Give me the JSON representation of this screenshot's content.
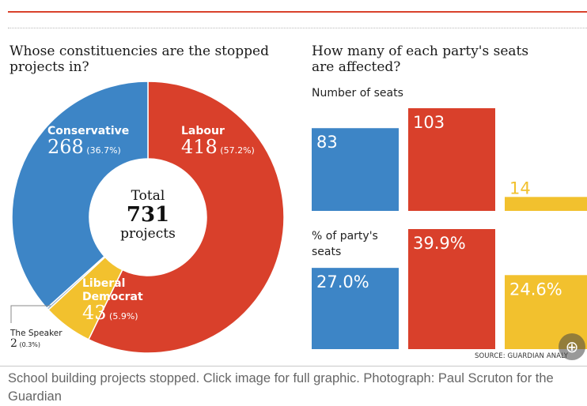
{
  "left_title": "Whose constituencies are the stopped projects in?",
  "right_title": "How many of each party's seats are affected?",
  "seats_label": "Number of seats",
  "pct_label": "% of party's seats",
  "source": "SOURCE: GUARDIAN ANALY",
  "caption": "School building projects stopped. Click image for full graphic. Photograph: Paul Scruton for the Guardian",
  "zoom_symbol": "⊕",
  "colors": {
    "labour": "#d9402b",
    "conservative": "#3d85c6",
    "libdem": "#f2c12e",
    "speaker": "#9ab3cc"
  },
  "chart_data": [
    {
      "type": "pie",
      "title": "Whose constituencies are the stopped projects in?",
      "center_label": [
        "Total",
        "731",
        "projects"
      ],
      "slices": [
        {
          "name": "Labour",
          "value": 418,
          "pct_label": "(57.2%)",
          "color": "#d9402b"
        },
        {
          "name": "Liberal Democrat",
          "value": 43,
          "pct_label": "(5.9%)",
          "color": "#f2c12e"
        },
        {
          "name": "The Speaker",
          "value": 2,
          "pct_label": "(0.3%)",
          "color": "#9ab3cc"
        },
        {
          "name": "Conservative",
          "value": 268,
          "pct_label": "(36.7%)",
          "color": "#3d85c6"
        }
      ]
    },
    {
      "type": "bar",
      "title": "Number of seats",
      "categories": [
        "Conservative",
        "Labour",
        "Liberal Democrat"
      ],
      "values": [
        83,
        103,
        14
      ],
      "labels": [
        "83",
        "103",
        "14"
      ],
      "colors": [
        "#3d85c6",
        "#d9402b",
        "#f2c12e"
      ]
    },
    {
      "type": "bar",
      "title": "% of party's seats",
      "categories": [
        "Conservative",
        "Labour",
        "Liberal Democrat"
      ],
      "values": [
        27.0,
        39.9,
        24.6
      ],
      "labels": [
        "27.0%",
        "39.9%",
        "24.6%"
      ],
      "colors": [
        "#3d85c6",
        "#d9402b",
        "#f2c12e"
      ]
    }
  ]
}
